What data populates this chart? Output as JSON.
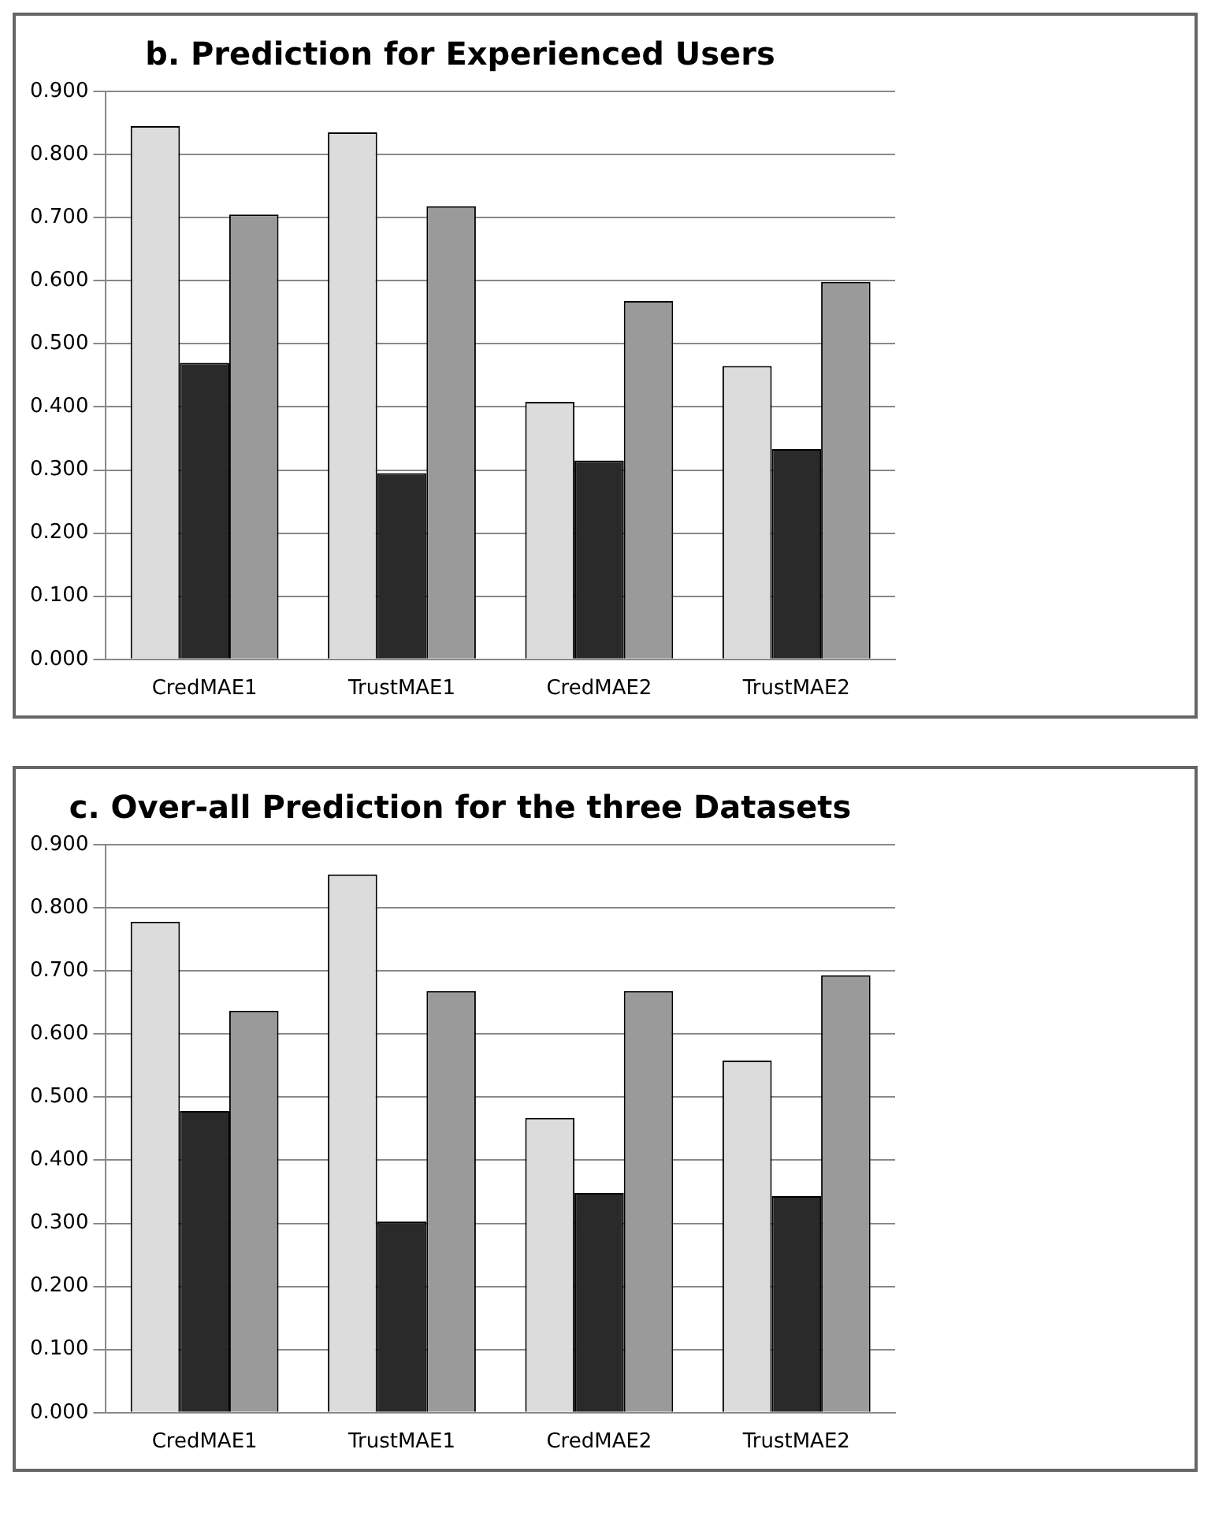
{
  "chart_data": [
    {
      "type": "bar",
      "title": "b. Prediction for Experienced Users",
      "categories": [
        "CredMAE1",
        "TrustMAE1",
        "CredMAE2",
        "TrustMAE2"
      ],
      "series": [
        {
          "color": "#dcdcdc",
          "values": [
            0.845,
            0.835,
            0.408,
            0.465
          ]
        },
        {
          "color": "#2a2a2a",
          "values": [
            0.47,
            0.295,
            0.315,
            0.333
          ]
        },
        {
          "color": "#9a9a9a",
          "values": [
            0.705,
            0.718,
            0.568,
            0.598
          ]
        }
      ],
      "ylim": [
        0,
        0.9
      ],
      "yticks": [
        {
          "value": 0,
          "label": "0.000"
        },
        {
          "value": 0.1,
          "label": "0.100"
        },
        {
          "value": 0.2,
          "label": "0.200"
        },
        {
          "value": 0.3,
          "label": "0.300"
        },
        {
          "value": 0.4,
          "label": "0.400"
        },
        {
          "value": 0.5,
          "label": "0.500"
        },
        {
          "value": 0.6,
          "label": "0.600"
        },
        {
          "value": 0.7,
          "label": "0.700"
        },
        {
          "value": 0.8,
          "label": "0.800"
        },
        {
          "value": 0.9,
          "label": "0.900"
        }
      ],
      "grid": "y"
    },
    {
      "type": "bar",
      "title": "c. Over-all Prediction for the three Datasets",
      "categories": [
        "CredMAE1",
        "TrustMAE1",
        "CredMAE2",
        "TrustMAE2"
      ],
      "series": [
        {
          "color": "#dcdcdc",
          "values": [
            0.778,
            0.853,
            0.467,
            0.558
          ]
        },
        {
          "color": "#2a2a2a",
          "values": [
            0.478,
            0.303,
            0.348,
            0.343
          ]
        },
        {
          "color": "#9a9a9a",
          "values": [
            0.637,
            0.668,
            0.668,
            0.693
          ]
        }
      ],
      "ylim": [
        0,
        0.9
      ],
      "yticks": [
        {
          "value": 0,
          "label": "0.000"
        },
        {
          "value": 0.1,
          "label": "0.100"
        },
        {
          "value": 0.2,
          "label": "0.200"
        },
        {
          "value": 0.3,
          "label": "0.300"
        },
        {
          "value": 0.4,
          "label": "0.400"
        },
        {
          "value": 0.5,
          "label": "0.500"
        },
        {
          "value": 0.6,
          "label": "0.600"
        },
        {
          "value": 0.7,
          "label": "0.700"
        },
        {
          "value": 0.8,
          "label": "0.800"
        },
        {
          "value": 0.9,
          "label": "0.900"
        }
      ],
      "grid": "y"
    }
  ]
}
